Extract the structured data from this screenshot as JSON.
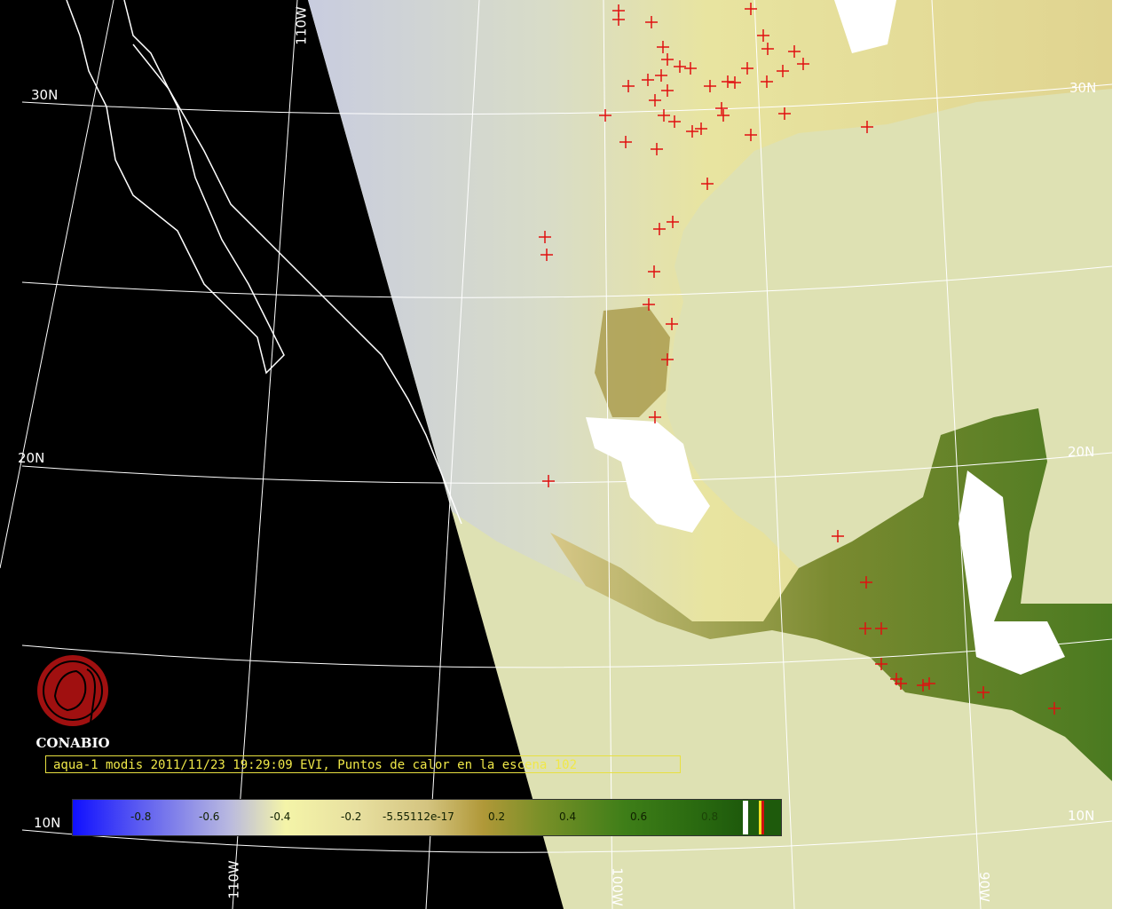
{
  "caption": "aqua-1 modis 2011/11/23 19:29:09 EVI, Puntos de calor en la escena 102",
  "logo": {
    "text": "CONABIO"
  },
  "grid_labels": {
    "lon_110w_top": "110W",
    "lon_110w_bottom": "110W",
    "lon_100w": "100W",
    "lon_90w": "90W",
    "lat_30n_left": "30N",
    "lat_20n_left": "20N",
    "lat_10n_left": "10N",
    "lat_30n_right": "30N",
    "lat_20n_right": "20N",
    "lat_10n_right": "10N"
  },
  "colorbar": {
    "labels": [
      "-0.8",
      "-0.6",
      "-0.4",
      "-0.2",
      "-5.55112e-17",
      "0.2",
      "0.4",
      "0.6",
      "0.8"
    ],
    "stripe_colors": [
      "#ffffff",
      "#f0e020",
      "#d01010"
    ]
  },
  "colors": {
    "ocean": "#dee1b3",
    "hotspot": "#e01010",
    "coastline": "#ffffff",
    "grid": "#ffffff"
  }
}
